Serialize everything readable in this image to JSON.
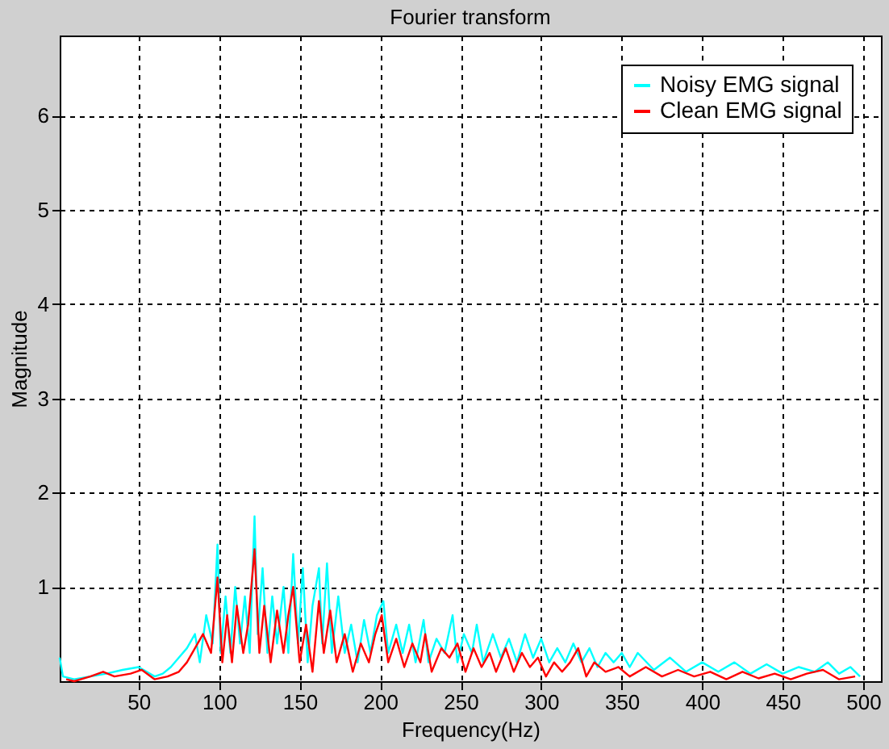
{
  "chart_data": {
    "type": "line",
    "title": "Fourier transform",
    "xlabel": "Frequency(Hz)",
    "ylabel": "Magnitude",
    "xlim": [
      1,
      511
    ],
    "ylim": [
      0,
      6.85
    ],
    "xticks": [
      50,
      100,
      150,
      200,
      250,
      300,
      350,
      400,
      450,
      500
    ],
    "yticks": [
      1,
      2,
      3,
      4,
      5,
      6
    ],
    "grid": true,
    "legend": "top right",
    "line_style": "solid",
    "series": [
      {
        "name": "Noisy EMG signal",
        "color": "#00ffff",
        "x": [
          1,
          3,
          10,
          20,
          30,
          40,
          50,
          55,
          60,
          65,
          70,
          75,
          80,
          85,
          88,
          92,
          96,
          99,
          101,
          104,
          107,
          110,
          113,
          116,
          119,
          122,
          124,
          127,
          130,
          133,
          136,
          140,
          143,
          146,
          149,
          152,
          155,
          158,
          162,
          164,
          167,
          170,
          174,
          178,
          182,
          186,
          190,
          194,
          198,
          202,
          205,
          210,
          214,
          218,
          222,
          227,
          230,
          235,
          240,
          245,
          248,
          252,
          257,
          260,
          264,
          270,
          275,
          280,
          285,
          290,
          295,
          300,
          305,
          310,
          315,
          320,
          325,
          330,
          335,
          340,
          345,
          350,
          355,
          360,
          370,
          380,
          390,
          400,
          410,
          420,
          430,
          440,
          450,
          460,
          470,
          478,
          485,
          492,
          498
        ],
        "values": [
          0.25,
          0.05,
          0.02,
          0.05,
          0.08,
          0.12,
          0.15,
          0.1,
          0.05,
          0.08,
          0.15,
          0.25,
          0.35,
          0.5,
          0.2,
          0.7,
          0.4,
          1.45,
          0.3,
          0.9,
          0.3,
          1.0,
          0.4,
          0.9,
          0.3,
          1.75,
          0.5,
          1.2,
          0.3,
          0.9,
          0.4,
          1.0,
          0.3,
          1.35,
          0.4,
          1.2,
          0.2,
          0.8,
          1.2,
          0.4,
          1.25,
          0.3,
          0.9,
          0.3,
          0.6,
          0.2,
          0.65,
          0.3,
          0.7,
          0.85,
          0.3,
          0.6,
          0.3,
          0.6,
          0.2,
          0.65,
          0.2,
          0.45,
          0.3,
          0.7,
          0.2,
          0.5,
          0.3,
          0.6,
          0.2,
          0.5,
          0.25,
          0.45,
          0.2,
          0.5,
          0.25,
          0.45,
          0.2,
          0.35,
          0.2,
          0.4,
          0.2,
          0.35,
          0.15,
          0.3,
          0.2,
          0.3,
          0.15,
          0.3,
          0.12,
          0.25,
          0.1,
          0.2,
          0.1,
          0.2,
          0.08,
          0.18,
          0.08,
          0.15,
          0.1,
          0.2,
          0.08,
          0.15,
          0.05
        ]
      },
      {
        "name": "Clean EMG signal",
        "color": "#ff0000",
        "x": [
          5,
          10,
          20,
          28,
          35,
          45,
          52,
          60,
          68,
          75,
          80,
          85,
          90,
          95,
          99,
          102,
          105,
          108,
          111,
          115,
          118,
          122,
          125,
          128,
          132,
          136,
          140,
          143,
          146,
          150,
          154,
          158,
          162,
          165,
          169,
          173,
          178,
          183,
          188,
          193,
          197,
          201,
          205,
          210,
          215,
          220,
          225,
          228,
          232,
          238,
          243,
          248,
          253,
          258,
          263,
          268,
          272,
          278,
          283,
          288,
          293,
          298,
          303,
          308,
          313,
          318,
          323,
          328,
          333,
          340,
          348,
          355,
          365,
          375,
          385,
          395,
          405,
          415,
          425,
          435,
          445,
          455,
          465,
          475,
          485,
          495
        ],
        "values": [
          0.02,
          0.0,
          0.05,
          0.1,
          0.05,
          0.08,
          0.12,
          0.02,
          0.05,
          0.1,
          0.2,
          0.35,
          0.5,
          0.3,
          1.1,
          0.2,
          0.7,
          0.2,
          0.8,
          0.3,
          0.6,
          1.4,
          0.3,
          0.8,
          0.2,
          0.75,
          0.3,
          0.7,
          1.0,
          0.2,
          0.6,
          0.1,
          0.85,
          0.3,
          0.75,
          0.2,
          0.5,
          0.1,
          0.4,
          0.2,
          0.5,
          0.7,
          0.2,
          0.45,
          0.15,
          0.4,
          0.2,
          0.5,
          0.1,
          0.35,
          0.25,
          0.4,
          0.1,
          0.35,
          0.15,
          0.3,
          0.1,
          0.35,
          0.1,
          0.3,
          0.15,
          0.25,
          0.05,
          0.2,
          0.1,
          0.2,
          0.35,
          0.05,
          0.2,
          0.1,
          0.15,
          0.05,
          0.15,
          0.05,
          0.12,
          0.05,
          0.1,
          0.02,
          0.1,
          0.03,
          0.08,
          0.02,
          0.08,
          0.12,
          0.02,
          0.05
        ]
      }
    ]
  }
}
